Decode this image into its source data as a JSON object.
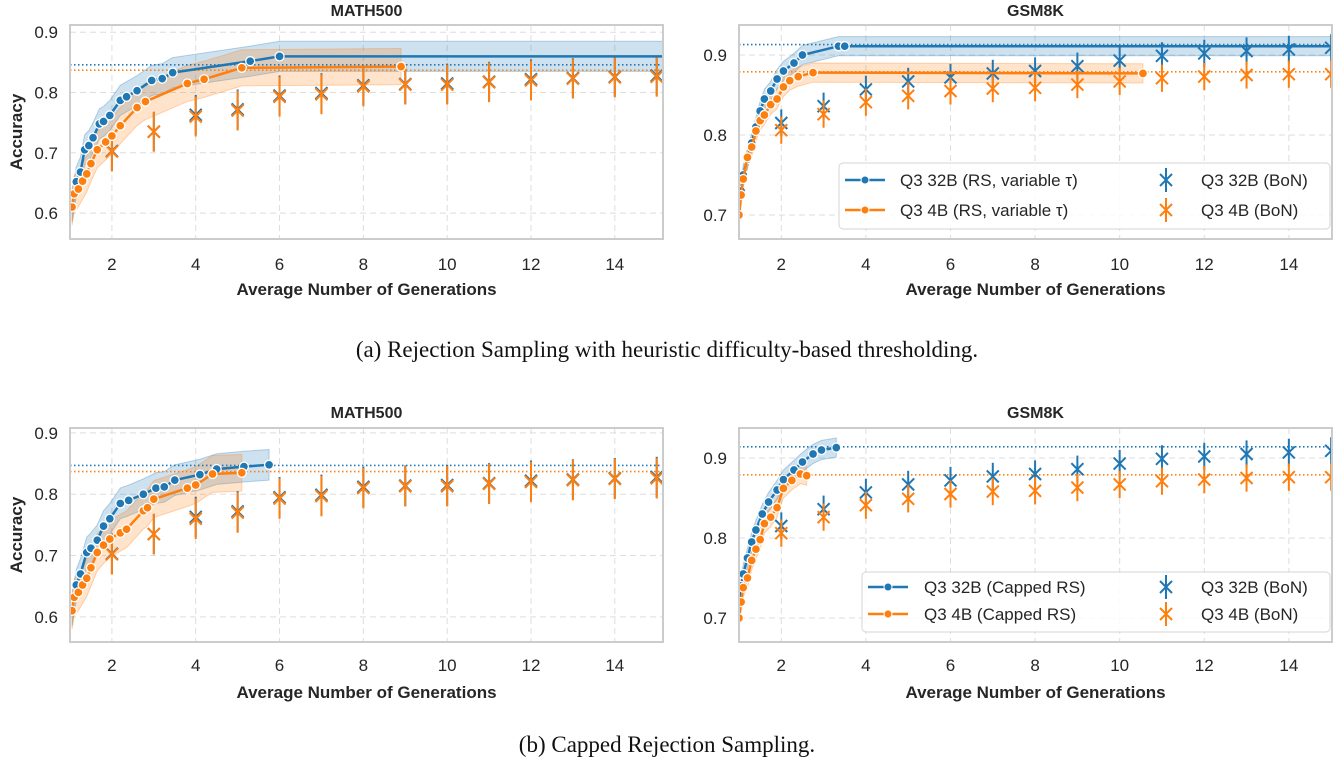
{
  "captions": {
    "a": "(a) Rejection Sampling with heuristic difficulty-based thresholding.",
    "b": "(b) Capped Rejection Sampling."
  },
  "colors": {
    "blue": "#1f77b4",
    "orange": "#ff7f0e"
  },
  "chart_data": [
    {
      "type": "line",
      "title": "MATH500",
      "xlabel": "Average Number of Generations",
      "ylabel": "Accuracy",
      "xlim": [
        1,
        15.15
      ],
      "ylim": [
        0.557,
        0.912
      ],
      "xticks": [
        "2",
        "4",
        "6",
        "8",
        "10",
        "12",
        "14"
      ],
      "yticks": [
        "0.6",
        "0.7",
        "0.8",
        "0.9"
      ],
      "grid": true,
      "ref_lines": [
        {
          "value": 0.846,
          "color": "#1f77b4"
        },
        {
          "value": 0.837,
          "color": "#ff7f0e"
        }
      ],
      "series": [
        {
          "kind": "rs",
          "color": "#1f77b4",
          "ci": 0.025,
          "line_end_x": 15.15,
          "x": [
            1.05,
            1.15,
            1.25,
            1.35,
            1.45,
            1.55,
            1.7,
            1.8,
            1.95,
            2.2,
            2.35,
            2.6,
            2.95,
            3.2,
            3.45,
            5.3,
            6.0
          ],
          "y": [
            0.61,
            0.652,
            0.668,
            0.705,
            0.712,
            0.725,
            0.748,
            0.752,
            0.762,
            0.787,
            0.793,
            0.803,
            0.82,
            0.823,
            0.833,
            0.852,
            0.86
          ]
        },
        {
          "kind": "rs",
          "color": "#ff7f0e",
          "ci": 0.03,
          "x": [
            1.05,
            1.1,
            1.2,
            1.3,
            1.4,
            1.5,
            1.65,
            1.85,
            2.0,
            2.2,
            2.6,
            2.8,
            3.8,
            4.2,
            5.1,
            8.9
          ],
          "y": [
            0.61,
            0.632,
            0.64,
            0.653,
            0.665,
            0.682,
            0.705,
            0.718,
            0.728,
            0.745,
            0.775,
            0.785,
            0.815,
            0.822,
            0.841,
            0.843
          ]
        },
        {
          "kind": "bon",
          "color": "#1f77b4",
          "err": 0.033,
          "x": [
            2,
            3,
            4,
            5,
            6,
            7,
            8,
            9,
            10,
            11,
            12,
            13,
            14,
            15
          ],
          "y": [
            0.703,
            0.735,
            0.763,
            0.772,
            0.795,
            0.799,
            0.812,
            0.814,
            0.815,
            0.818,
            0.822,
            0.824,
            0.826,
            0.828
          ]
        },
        {
          "kind": "bon",
          "color": "#ff7f0e",
          "err": 0.033,
          "x": [
            2,
            3,
            4,
            5,
            6,
            7,
            8,
            9,
            10,
            11,
            12,
            13,
            14,
            15
          ],
          "y": [
            0.702,
            0.735,
            0.76,
            0.77,
            0.793,
            0.797,
            0.81,
            0.813,
            0.813,
            0.817,
            0.82,
            0.823,
            0.825,
            0.826
          ]
        }
      ]
    },
    {
      "type": "line",
      "title": "GSM8K",
      "xlabel": "Average Number of Generations",
      "ylabel": "",
      "xlim": [
        1,
        15.02
      ],
      "ylim": [
        0.67,
        0.9375
      ],
      "xticks": [
        "2",
        "4",
        "6",
        "8",
        "10",
        "12",
        "14"
      ],
      "yticks": [
        "0.7",
        "0.8",
        "0.9"
      ],
      "grid": true,
      "legend": {
        "placement": "lower right"
      },
      "ref_lines": [
        {
          "value": 0.913,
          "color": "#1f77b4"
        },
        {
          "value": 0.879,
          "color": "#ff7f0e"
        }
      ],
      "series": [
        {
          "name": "Q3 32B (RS, variable τ)",
          "kind": "rs",
          "color": "#1f77b4",
          "ci": 0.012,
          "line_end_x": 15.02,
          "x": [
            1.0,
            1.05,
            1.1,
            1.2,
            1.3,
            1.4,
            1.5,
            1.6,
            1.75,
            1.9,
            2.05,
            2.3,
            2.5,
            3.35,
            3.5
          ],
          "y": [
            0.7,
            0.73,
            0.75,
            0.77,
            0.79,
            0.81,
            0.83,
            0.845,
            0.855,
            0.87,
            0.88,
            0.89,
            0.9,
            0.911,
            0.911
          ]
        },
        {
          "name": "Q3 4B (RS, variable τ)",
          "kind": "rs",
          "color": "#ff7f0e",
          "ci": 0.012,
          "x": [
            1.0,
            1.05,
            1.1,
            1.2,
            1.3,
            1.4,
            1.5,
            1.6,
            1.75,
            1.9,
            2.05,
            2.2,
            2.4,
            2.75,
            10.55
          ],
          "y": [
            0.7,
            0.725,
            0.745,
            0.772,
            0.785,
            0.805,
            0.818,
            0.825,
            0.838,
            0.845,
            0.86,
            0.868,
            0.873,
            0.878,
            0.877
          ]
        },
        {
          "name": "Q3 32B (BoN)",
          "kind": "bon",
          "color": "#1f77b4",
          "err": 0.017,
          "x": [
            2,
            3,
            4,
            5,
            6,
            7,
            8,
            9,
            10,
            11,
            12,
            13,
            14,
            15
          ],
          "y": [
            0.815,
            0.836,
            0.857,
            0.867,
            0.872,
            0.877,
            0.88,
            0.886,
            0.893,
            0.899,
            0.902,
            0.905,
            0.907,
            0.909
          ]
        },
        {
          "name": "Q3 4B (BoN)",
          "kind": "bon",
          "color": "#ff7f0e",
          "err": 0.017,
          "x": [
            2,
            3,
            4,
            5,
            6,
            7,
            8,
            9,
            10,
            11,
            12,
            13,
            14,
            15
          ],
          "y": [
            0.806,
            0.826,
            0.841,
            0.849,
            0.855,
            0.858,
            0.859,
            0.863,
            0.867,
            0.871,
            0.873,
            0.875,
            0.876,
            0.876
          ]
        }
      ]
    },
    {
      "type": "line",
      "title": "MATH500",
      "xlabel": "Average Number of Generations",
      "ylabel": "Accuracy",
      "xlim": [
        1,
        15.15
      ],
      "ylim": [
        0.559,
        0.908
      ],
      "xticks": [
        "2",
        "4",
        "6",
        "8",
        "10",
        "12",
        "14"
      ],
      "yticks": [
        "0.6",
        "0.7",
        "0.8",
        "0.9"
      ],
      "grid": true,
      "ref_lines": [
        {
          "value": 0.847,
          "color": "#1f77b4"
        },
        {
          "value": 0.837,
          "color": "#ff7f0e"
        }
      ],
      "series": [
        {
          "kind": "rs",
          "color": "#1f77b4",
          "ci": 0.025,
          "x": [
            1.05,
            1.15,
            1.25,
            1.4,
            1.5,
            1.65,
            1.8,
            1.95,
            2.2,
            2.4,
            2.75,
            3.05,
            3.25,
            3.5,
            4.1,
            4.5,
            5.15,
            5.75
          ],
          "y": [
            0.61,
            0.652,
            0.67,
            0.705,
            0.712,
            0.725,
            0.748,
            0.76,
            0.785,
            0.79,
            0.8,
            0.81,
            0.812,
            0.823,
            0.832,
            0.841,
            0.845,
            0.848
          ]
        },
        {
          "kind": "rs",
          "color": "#ff7f0e",
          "ci": 0.03,
          "x": [
            1.05,
            1.1,
            1.2,
            1.3,
            1.4,
            1.5,
            1.65,
            1.8,
            1.95,
            2.2,
            2.35,
            2.75,
            2.85,
            3.0,
            3.8,
            4.0,
            4.4,
            5.1
          ],
          "y": [
            0.61,
            0.632,
            0.64,
            0.652,
            0.663,
            0.68,
            0.705,
            0.717,
            0.727,
            0.737,
            0.743,
            0.773,
            0.778,
            0.792,
            0.81,
            0.815,
            0.833,
            0.835
          ]
        },
        {
          "kind": "bon",
          "color": "#1f77b4",
          "err": 0.033,
          "x": [
            2,
            3,
            4,
            5,
            6,
            7,
            8,
            9,
            10,
            11,
            12,
            13,
            14,
            15
          ],
          "y": [
            0.703,
            0.735,
            0.763,
            0.772,
            0.795,
            0.799,
            0.812,
            0.814,
            0.815,
            0.818,
            0.822,
            0.824,
            0.826,
            0.828
          ]
        },
        {
          "kind": "bon",
          "color": "#ff7f0e",
          "err": 0.033,
          "x": [
            2,
            3,
            4,
            5,
            6,
            7,
            8,
            9,
            10,
            11,
            12,
            13,
            14,
            15
          ],
          "y": [
            0.702,
            0.735,
            0.76,
            0.77,
            0.793,
            0.797,
            0.81,
            0.813,
            0.813,
            0.817,
            0.82,
            0.823,
            0.825,
            0.826
          ]
        }
      ]
    },
    {
      "type": "line",
      "title": "GSM8K",
      "xlabel": "Average Number of Generations",
      "ylabel": "",
      "xlim": [
        1,
        15.02
      ],
      "ylim": [
        0.67,
        0.9375
      ],
      "xticks": [
        "2",
        "4",
        "6",
        "8",
        "10",
        "12",
        "14"
      ],
      "yticks": [
        "0.7",
        "0.8",
        "0.9"
      ],
      "grid": true,
      "legend": {
        "placement": "lower right"
      },
      "ref_lines": [
        {
          "value": 0.914,
          "color": "#1f77b4"
        },
        {
          "value": 0.879,
          "color": "#ff7f0e"
        }
      ],
      "series": [
        {
          "name": "Q3 32B (Capped RS)",
          "kind": "rs",
          "color": "#1f77b4",
          "ci": 0.012,
          "x": [
            1.0,
            1.05,
            1.1,
            1.2,
            1.3,
            1.4,
            1.55,
            1.7,
            1.9,
            2.05,
            2.3,
            2.5,
            2.75,
            2.95,
            3.3
          ],
          "y": [
            0.7,
            0.74,
            0.755,
            0.775,
            0.795,
            0.81,
            0.83,
            0.845,
            0.86,
            0.873,
            0.885,
            0.895,
            0.905,
            0.91,
            0.913
          ]
        },
        {
          "name": "Q3 4B (Capped RS)",
          "kind": "rs",
          "color": "#ff7f0e",
          "ci": 0.012,
          "x": [
            1.0,
            1.05,
            1.1,
            1.2,
            1.3,
            1.4,
            1.5,
            1.6,
            1.75,
            1.9,
            2.05,
            2.25,
            2.45,
            2.6
          ],
          "y": [
            0.7,
            0.72,
            0.738,
            0.75,
            0.772,
            0.786,
            0.798,
            0.818,
            0.826,
            0.838,
            0.862,
            0.872,
            0.88,
            0.878
          ]
        },
        {
          "name": "Q3 32B (BoN)",
          "kind": "bon",
          "color": "#1f77b4",
          "err": 0.017,
          "x": [
            2,
            3,
            4,
            5,
            6,
            7,
            8,
            9,
            10,
            11,
            12,
            13,
            14,
            15
          ],
          "y": [
            0.815,
            0.836,
            0.857,
            0.867,
            0.872,
            0.877,
            0.88,
            0.886,
            0.893,
            0.899,
            0.902,
            0.905,
            0.907,
            0.909
          ]
        },
        {
          "name": "Q3 4B (BoN)",
          "kind": "bon",
          "color": "#ff7f0e",
          "err": 0.017,
          "x": [
            2,
            3,
            4,
            5,
            6,
            7,
            8,
            9,
            10,
            11,
            12,
            13,
            14,
            15
          ],
          "y": [
            0.806,
            0.826,
            0.841,
            0.849,
            0.855,
            0.858,
            0.859,
            0.863,
            0.867,
            0.871,
            0.873,
            0.875,
            0.876,
            0.876
          ]
        }
      ]
    }
  ]
}
